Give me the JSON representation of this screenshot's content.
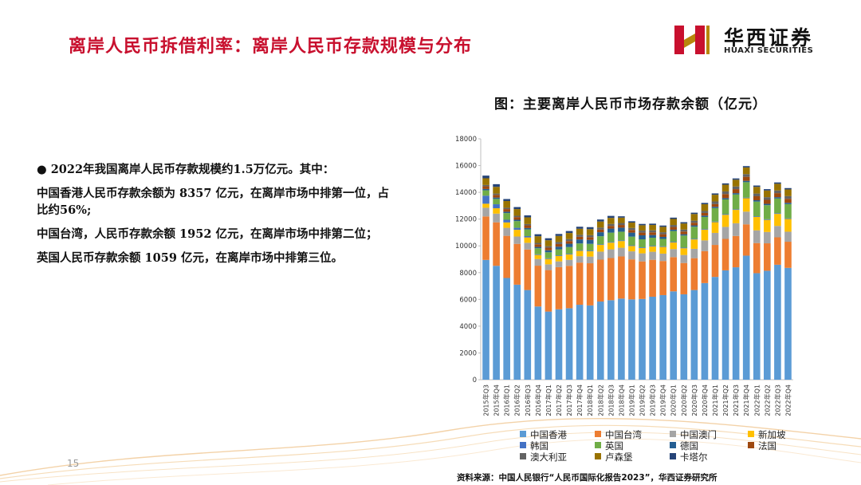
{
  "header": {
    "title": "离岸人民币拆借利率：离岸人民币存款规模与分布",
    "logo_cn": "华西证券",
    "logo_en": "HUAXI SECURITIES"
  },
  "chart_caption": "图：主要离岸人民币市场存款余额（亿元）",
  "bullets": [
    "● 2022年我国离岸人民币存款规模约1.5万亿元。其中：",
    "中国香港人民币存款余额为 8357 亿元，在离岸市场中排第一位，占比约56%;",
    "中国台湾，人民币存款余额 1952 亿元，在离岸市场中排第二位；",
    "英国人民币存款余额 1059 亿元，在离岸市场中排第三位。"
  ],
  "page_number": "15",
  "source": "资料来源：中国人民银行“人民币国际化报告2023”，华西证券研究所",
  "chart_data": {
    "type": "bar",
    "stacked": true,
    "title": "",
    "xlabel": "",
    "ylabel": "",
    "ylim": [
      0,
      18000
    ],
    "yticks": [
      0,
      2000,
      4000,
      6000,
      8000,
      10000,
      12000,
      14000,
      16000,
      18000
    ],
    "grid": false,
    "legend_position": "bottom",
    "categories": [
      "2015年Q3",
      "2015年Q4",
      "2016年Q1",
      "2016年Q2",
      "2016年Q3",
      "2016年Q4",
      "2017年Q1",
      "2017年Q2",
      "2017年Q3",
      "2017年Q4",
      "2018年Q1",
      "2018年Q2",
      "2018年Q3",
      "2018年Q4",
      "2019年Q1",
      "2019年Q2",
      "2019年Q3",
      "2019年Q4",
      "2020年Q1",
      "2020年Q2",
      "2020年Q3",
      "2020年Q4",
      "2021年Q1",
      "2021年Q2",
      "2021年Q3",
      "2021年Q4",
      "2022年Q1",
      "2022年Q2",
      "2022年Q3",
      "2022年Q4"
    ],
    "series": [
      {
        "name": "中国香港",
        "color": "#5b9bd5",
        "values": [
          8950,
          8510,
          7600,
          7100,
          6700,
          5470,
          5090,
          5260,
          5340,
          5600,
          5550,
          5840,
          5940,
          6060,
          6000,
          6030,
          6200,
          6320,
          6600,
          6380,
          6700,
          7220,
          7680,
          8170,
          8400,
          9270,
          7960,
          8140,
          8590,
          8357
        ]
      },
      {
        "name": "中国台湾",
        "color": "#ed7d31",
        "values": [
          3250,
          3250,
          3150,
          3050,
          3030,
          3050,
          3100,
          3150,
          3170,
          3150,
          3150,
          3130,
          3150,
          3150,
          2990,
          2810,
          2760,
          2550,
          2560,
          2340,
          2380,
          2390,
          2390,
          2350,
          2340,
          2340,
          2250,
          2050,
          2050,
          1952
        ]
      },
      {
        "name": "中国澳门",
        "color": "#a5a5a5",
        "values": [
          650,
          650,
          600,
          550,
          500,
          500,
          430,
          430,
          450,
          480,
          500,
          600,
          650,
          650,
          600,
          600,
          600,
          550,
          600,
          600,
          700,
          800,
          900,
          900,
          950,
          950,
          950,
          850,
          850,
          750
        ]
      },
      {
        "name": "新加坡",
        "color": "#ffc000",
        "values": [
          300,
          400,
          400,
          500,
          400,
          300,
          400,
          400,
          400,
          400,
          400,
          500,
          500,
          500,
          400,
          400,
          400,
          500,
          500,
          500,
          700,
          800,
          800,
          900,
          1000,
          1000,
          1000,
          900,
          900,
          950
        ]
      },
      {
        "name": "韩国",
        "color": "#4472c4",
        "values": [
          600,
          300,
          200,
          150,
          100,
          50,
          50,
          50,
          50,
          50,
          50,
          50,
          50,
          50,
          50,
          50,
          50,
          50,
          50,
          50,
          50,
          50,
          50,
          50,
          50,
          50,
          50,
          50,
          50,
          50
        ]
      },
      {
        "name": "英国",
        "color": "#70ad47",
        "values": [
          400,
          400,
          500,
          500,
          500,
          450,
          450,
          450,
          500,
          500,
          500,
          600,
          700,
          650,
          650,
          600,
          600,
          550,
          800,
          900,
          900,
          900,
          1000,
          1100,
          1100,
          1150,
          1100,
          1050,
          1100,
          1059
        ]
      },
      {
        "name": "德国",
        "color": "#255e91",
        "values": [
          100,
          100,
          100,
          100,
          100,
          100,
          150,
          200,
          250,
          300,
          300,
          300,
          300,
          300,
          300,
          300,
          200,
          150,
          100,
          100,
          100,
          100,
          100,
          100,
          100,
          100,
          100,
          100,
          100,
          100
        ]
      },
      {
        "name": "法国",
        "color": "#9e480e",
        "values": [
          200,
          200,
          200,
          200,
          200,
          200,
          200,
          200,
          200,
          200,
          200,
          200,
          200,
          200,
          200,
          200,
          200,
          200,
          200,
          200,
          200,
          200,
          200,
          300,
          300,
          300,
          300,
          300,
          300,
          300
        ]
      },
      {
        "name": "澳大利亚",
        "color": "#636363",
        "values": [
          100,
          100,
          100,
          100,
          100,
          100,
          100,
          150,
          150,
          150,
          150,
          150,
          150,
          150,
          150,
          150,
          150,
          150,
          150,
          150,
          150,
          150,
          200,
          200,
          200,
          200,
          200,
          200,
          200,
          200
        ]
      },
      {
        "name": "卢森堡",
        "color": "#997300",
        "values": [
          500,
          500,
          500,
          500,
          500,
          500,
          450,
          450,
          450,
          450,
          450,
          450,
          450,
          400,
          400,
          400,
          400,
          400,
          450,
          450,
          500,
          500,
          500,
          500,
          500,
          500,
          500,
          500,
          500,
          500
        ]
      },
      {
        "name": "卡塔尔",
        "color": "#264478",
        "values": [
          200,
          200,
          150,
          150,
          150,
          150,
          150,
          150,
          150,
          150,
          150,
          150,
          150,
          100,
          100,
          100,
          100,
          100,
          100,
          100,
          100,
          100,
          100,
          100,
          100,
          100,
          100,
          100,
          100,
          100
        ]
      }
    ]
  }
}
